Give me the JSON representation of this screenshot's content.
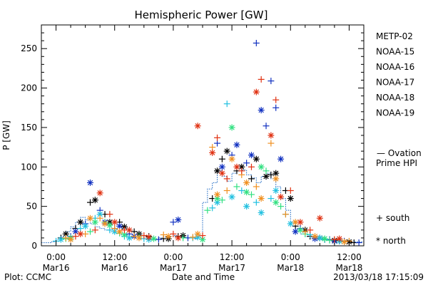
{
  "chart_data": {
    "type": "scatter",
    "title": "Hemispheric Power [GW]",
    "ylabel": "P [GW]",
    "xlabel": "Date and Time",
    "ylim": [
      0,
      280
    ],
    "yticks": [
      0,
      50,
      100,
      150,
      200,
      250
    ],
    "x_unit": "hours since 2013-03-15 21:00 UT",
    "xlim": [
      0,
      66
    ],
    "xticks": [
      {
        "x": 3,
        "line1": "0:00",
        "line2": "Mar16"
      },
      {
        "x": 15,
        "line1": "12:00",
        "line2": "Mar16"
      },
      {
        "x": 27,
        "line1": "0:00",
        "line2": "Mar17"
      },
      {
        "x": 39,
        "line1": "12:00",
        "line2": "Mar17"
      },
      {
        "x": 51,
        "line1": "0:00",
        "line2": "Mar18"
      },
      {
        "x": 63,
        "line1": "12:00",
        "line2": "Mar18"
      }
    ],
    "legend": {
      "placement": "right",
      "entries": [
        {
          "name": "METP-02",
          "color": "#000000"
        },
        {
          "name": "NOAA-15",
          "color": "#1030c0"
        },
        {
          "name": "NOAA-16",
          "color": "#20c0e0"
        },
        {
          "name": "NOAA-17",
          "color": "#30e080"
        },
        {
          "name": "NOAA-18",
          "color": "#f09020"
        },
        {
          "name": "NOAA-19",
          "color": "#e03010"
        }
      ],
      "ovation_label_1": "— Ovation",
      "ovation_label_2": "Prime HPI",
      "ovation_color": "#1060c0",
      "south_label": "+ south",
      "north_label": "* north"
    },
    "ovation": {
      "x": [
        0,
        1,
        2,
        3,
        4,
        5,
        6,
        7,
        8,
        9,
        10,
        11,
        12,
        13,
        14,
        15,
        16,
        17,
        18,
        19,
        20,
        21,
        22,
        23,
        24,
        25,
        26,
        27,
        28,
        29,
        30,
        31,
        32,
        33,
        34,
        35,
        36,
        37,
        38,
        39,
        40,
        41,
        42,
        43,
        44,
        45,
        46,
        47,
        48,
        49,
        50,
        51,
        52,
        53,
        54,
        55,
        56,
        57,
        58,
        59,
        60,
        61,
        62,
        63,
        64,
        65,
        66
      ],
      "y": [
        4,
        4,
        5,
        8,
        12,
        18,
        24,
        30,
        36,
        33,
        28,
        24,
        22,
        20,
        18,
        16,
        14,
        13,
        11,
        10,
        9,
        9,
        8,
        9,
        10,
        11,
        12,
        13,
        12,
        11,
        10,
        9,
        10,
        55,
        72,
        80,
        95,
        88,
        82,
        92,
        100,
        96,
        90,
        86,
        80,
        88,
        92,
        85,
        75,
        60,
        45,
        30,
        20,
        15,
        12,
        10,
        9,
        8,
        8,
        7,
        7,
        6,
        6,
        6,
        5,
        5,
        5
      ]
    },
    "series": [
      {
        "color": "#000000",
        "marker": "+",
        "x": [
          4,
          7,
          10,
          13,
          16,
          19,
          22,
          25,
          28,
          35,
          37,
          40,
          43,
          47,
          50,
          52,
          55,
          58,
          61,
          64
        ],
        "y": [
          10,
          22,
          55,
          40,
          30,
          18,
          12,
          9,
          12,
          60,
          110,
          95,
          85,
          90,
          70,
          25,
          12,
          8,
          6,
          4
        ]
      },
      {
        "color": "#000000",
        "marker": "*",
        "x": [
          5,
          8,
          11,
          14,
          17,
          20,
          26,
          29,
          36,
          38,
          41,
          44,
          46,
          48,
          51,
          54,
          57,
          60,
          63
        ],
        "y": [
          15,
          30,
          58,
          30,
          24,
          15,
          9,
          13,
          95,
          120,
          100,
          110,
          88,
          92,
          60,
          20,
          10,
          7,
          5
        ]
      },
      {
        "color": "#1030c0",
        "marker": "+",
        "x": [
          6,
          9,
          12,
          15,
          18,
          24,
          27,
          30,
          36,
          39,
          42,
          44,
          46,
          47,
          48,
          53,
          59,
          62,
          65
        ],
        "y": [
          12,
          28,
          45,
          22,
          15,
          8,
          30,
          10,
          130,
          115,
          105,
          257,
          152,
          209,
          175,
          22,
          8,
          6,
          4
        ]
      },
      {
        "color": "#1030c0",
        "marker": "*",
        "x": [
          7,
          10,
          13,
          16,
          19,
          28,
          37,
          40,
          43,
          45,
          49,
          52,
          56,
          60
        ],
        "y": [
          18,
          80,
          30,
          25,
          12,
          33,
          100,
          128,
          115,
          172,
          110,
          18,
          9,
          6
        ]
      },
      {
        "color": "#20c0e0",
        "marker": "+",
        "x": [
          3,
          8,
          11,
          14,
          17,
          21,
          31,
          35,
          38,
          41,
          44,
          47,
          50,
          55,
          58,
          62
        ],
        "y": [
          6,
          22,
          35,
          20,
          12,
          9,
          10,
          48,
          180,
          70,
          55,
          60,
          40,
          14,
          8,
          5
        ]
      },
      {
        "color": "#20c0e0",
        "marker": "*",
        "x": [
          4,
          9,
          12,
          15,
          18,
          22,
          32,
          36,
          39,
          42,
          45,
          48,
          51,
          57,
          61
        ],
        "y": [
          8,
          25,
          40,
          18,
          10,
          8,
          11,
          55,
          62,
          50,
          42,
          70,
          28,
          10,
          6
        ]
      },
      {
        "color": "#30e080",
        "marker": "+",
        "x": [
          5,
          10,
          13,
          16,
          20,
          29,
          34,
          37,
          40,
          43,
          46,
          49,
          54,
          59
        ],
        "y": [
          9,
          18,
          30,
          16,
          12,
          10,
          45,
          58,
          75,
          65,
          95,
          50,
          15,
          7
        ]
      },
      {
        "color": "#30e080",
        "marker": "*",
        "x": [
          6,
          11,
          14,
          17,
          23,
          33,
          36,
          39,
          42,
          45,
          48,
          53,
          58
        ],
        "y": [
          10,
          30,
          26,
          14,
          9,
          8,
          60,
          150,
          68,
          100,
          55,
          20,
          9
        ]
      },
      {
        "color": "#f09020",
        "marker": "+",
        "x": [
          5,
          9,
          12,
          15,
          19,
          25,
          31,
          35,
          38,
          41,
          44,
          47,
          50,
          54,
          60,
          63
        ],
        "y": [
          10,
          15,
          35,
          22,
          12,
          14,
          11,
          125,
          70,
          90,
          75,
          130,
          40,
          18,
          8,
          6
        ]
      },
      {
        "color": "#f09020",
        "marker": "*",
        "x": [
          6,
          10,
          13,
          16,
          20,
          26,
          32,
          36,
          39,
          42,
          45,
          48,
          52,
          56,
          62
        ],
        "y": [
          8,
          35,
          28,
          18,
          10,
          12,
          15,
          65,
          110,
          80,
          60,
          85,
          30,
          12,
          5
        ]
      },
      {
        "color": "#e03010",
        "marker": "+",
        "x": [
          7,
          11,
          14,
          17,
          21,
          27,
          33,
          36,
          38,
          41,
          43,
          45,
          48,
          51,
          55,
          60
        ],
        "y": [
          12,
          20,
          40,
          20,
          13,
          15,
          13,
          137,
          85,
          95,
          100,
          211,
          185,
          70,
          20,
          8
        ]
      },
      {
        "color": "#e03010",
        "marker": "*",
        "x": [
          8,
          12,
          15,
          18,
          22,
          28,
          32,
          35,
          37,
          40,
          44,
          47,
          49,
          53,
          57,
          61
        ],
        "y": [
          15,
          67,
          30,
          20,
          11,
          10,
          152,
          118,
          92,
          100,
          195,
          140,
          62,
          30,
          35,
          9
        ]
      }
    ]
  },
  "footer": {
    "plot_credit": "Plot: CCMC",
    "xlabel": "Date and Time",
    "timestamp": "2013/03/18 17:15:09"
  }
}
